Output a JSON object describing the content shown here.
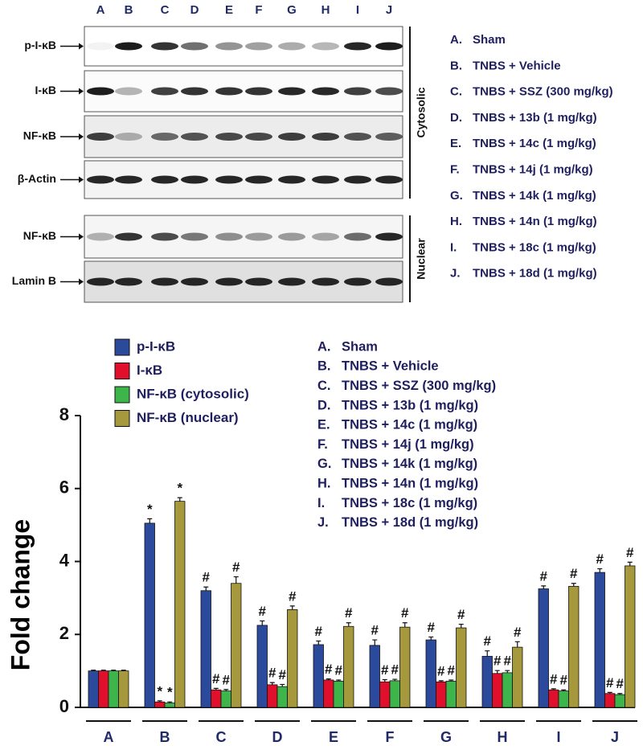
{
  "blot": {
    "lanes": [
      "A",
      "B",
      "C",
      "D",
      "E",
      "F",
      "G",
      "H",
      "I",
      "J"
    ],
    "rows": [
      {
        "label": "p-I-κB"
      },
      {
        "label": "I-κB"
      },
      {
        "label": "NF-κB"
      },
      {
        "label": "β-Actin"
      },
      {
        "label": "NF-κB"
      },
      {
        "label": "Lamin B"
      }
    ],
    "compartments": [
      "Cytosolic",
      "Nuclear"
    ],
    "groups": [
      "A.",
      "B.",
      "C.",
      "D.",
      "E.",
      "F.",
      "G.",
      "H.",
      "I.",
      "J."
    ],
    "group_names": [
      "Sham",
      "TNBS + Vehicle",
      "TNBS + SSZ (300 mg/kg)",
      "TNBS + 13b (1 mg/kg)",
      "TNBS + 14c (1 mg/kg)",
      "TNBS + 14j (1 mg/kg)",
      "TNBS + 14k (1 mg/kg)",
      "TNBS + 14n (1 mg/kg)",
      "TNBS + 18c (1 mg/kg)",
      "TNBS + 18d (1 mg/kg)"
    ]
  },
  "chart_data": {
    "type": "bar",
    "y_label": "Fold change",
    "categories": [
      "A",
      "B",
      "C",
      "D",
      "E",
      "F",
      "G",
      "H",
      "I",
      "J"
    ],
    "groups": [
      "A.",
      "B.",
      "C.",
      "D.",
      "E.",
      "F.",
      "G.",
      "H.",
      "I.",
      "J."
    ],
    "group_names": [
      "Sham",
      "TNBS + Vehicle",
      "TNBS + SSZ (300 mg/kg)",
      "TNBS + 13b (1 mg/kg)",
      "TNBS + 14c (1 mg/kg)",
      "TNBS + 14j (1 mg/kg)",
      "TNBS + 14k (1 mg/kg)",
      "TNBS + 14n (1 mg/kg)",
      "TNBS + 18c (1 mg/kg)",
      "TNBS + 18d (1 mg/kg)"
    ],
    "series": [
      {
        "name": "p-I-κB",
        "color": "#2c4a9c",
        "values": [
          1.0,
          5.05,
          3.2,
          2.25,
          1.72,
          1.7,
          1.85,
          1.4,
          3.25,
          3.7
        ],
        "errors": [
          0.02,
          0.12,
          0.1,
          0.12,
          0.1,
          0.15,
          0.08,
          0.15,
          0.08,
          0.1
        ],
        "markers": [
          null,
          "*",
          "#",
          "#",
          "#",
          "#",
          "#",
          "#",
          "#",
          "#"
        ]
      },
      {
        "name": "I-κB",
        "color": "#e0102c",
        "values": [
          1.0,
          0.15,
          0.48,
          0.62,
          0.75,
          0.7,
          0.7,
          0.93,
          0.48,
          0.38
        ],
        "errors": [
          0.02,
          0.03,
          0.04,
          0.06,
          0.03,
          0.06,
          0.03,
          0.08,
          0.03,
          0.03
        ],
        "markers": [
          null,
          "*",
          "#",
          "#",
          "#",
          "#",
          "#",
          "#",
          "#",
          "#"
        ]
      },
      {
        "name": "NF-κB (cytosolic)",
        "color": "#3db54a",
        "values": [
          1.0,
          0.12,
          0.45,
          0.57,
          0.72,
          0.73,
          0.72,
          0.95,
          0.45,
          0.35
        ],
        "errors": [
          0.02,
          0.03,
          0.04,
          0.06,
          0.03,
          0.04,
          0.03,
          0.06,
          0.03,
          0.03
        ],
        "markers": [
          null,
          "*",
          "#",
          "#",
          "#",
          "#",
          "#",
          "#",
          "#",
          "#"
        ]
      },
      {
        "name": "NF-κB (nuclear)",
        "color": "#a6983c",
        "values": [
          1.0,
          5.65,
          3.4,
          2.68,
          2.22,
          2.2,
          2.18,
          1.65,
          3.32,
          3.88
        ],
        "errors": [
          0.02,
          0.1,
          0.18,
          0.1,
          0.1,
          0.12,
          0.1,
          0.15,
          0.08,
          0.1
        ],
        "markers": [
          null,
          "*",
          "#",
          "#",
          "#",
          "#",
          "#",
          "#",
          "#",
          "#"
        ]
      }
    ],
    "ylim": [
      0,
      8
    ],
    "yticks": [
      0,
      2,
      4,
      6,
      8
    ],
    "legend": "upper-left"
  }
}
